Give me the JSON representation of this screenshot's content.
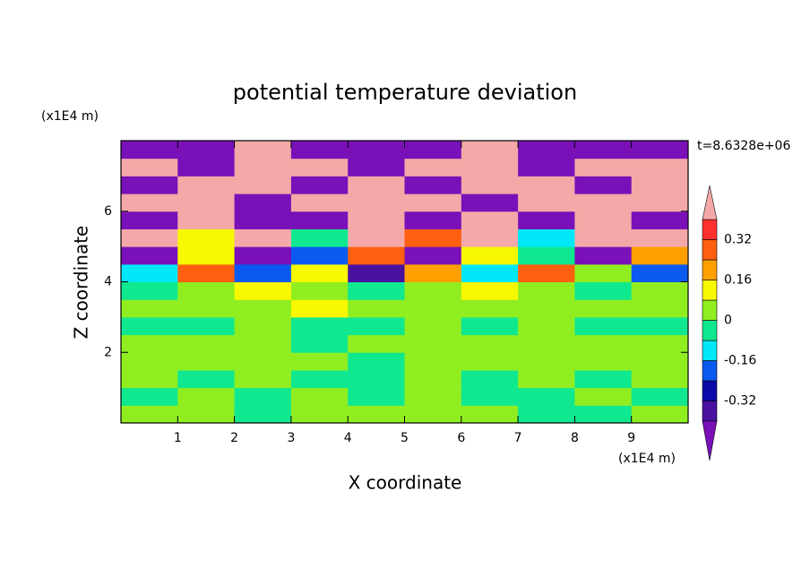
{
  "chart_data": {
    "type": "contour",
    "title": "potential temperature deviation",
    "xlabel": "X coordinate",
    "ylabel": "Z coordinate",
    "x_unit": "(x1E4 m)",
    "y_unit": "(x1E4 m)",
    "time_label": "t=8.6328e+06",
    "xlim": [
      0,
      10
    ],
    "ylim": [
      0,
      8
    ],
    "xticks": [
      1,
      2,
      3,
      4,
      5,
      6,
      7,
      8,
      9
    ],
    "yticks": [
      2,
      4,
      6
    ],
    "z": [
      [
        0.04,
        0.04,
        -0.04,
        0.04,
        0.04,
        0.04,
        0.04,
        -0.04,
        -0.04,
        0.04
      ],
      [
        -0.04,
        0.04,
        -0.04,
        0.04,
        -0.04,
        0.04,
        -0.04,
        -0.04,
        0.04,
        -0.04
      ],
      [
        0.04,
        -0.04,
        0.04,
        -0.04,
        -0.04,
        0.04,
        -0.04,
        0.04,
        -0.04,
        0.04
      ],
      [
        0.04,
        0.04,
        0.04,
        0.04,
        -0.04,
        0.04,
        0.04,
        0.04,
        0.04,
        0.04
      ],
      [
        0.04,
        0.04,
        0.04,
        -0.04,
        0.04,
        0.04,
        0.04,
        0.04,
        0.04,
        0.04
      ],
      [
        -0.04,
        -0.04,
        0.04,
        -0.04,
        -0.04,
        0.04,
        -0.04,
        0.04,
        -0.04,
        -0.04
      ],
      [
        0.04,
        0.04,
        0.04,
        0.12,
        0.04,
        0.04,
        0.04,
        0.04,
        0.04,
        0.04
      ],
      [
        -0.04,
        0.04,
        0.12,
        0.04,
        -0.04,
        0.04,
        0.12,
        0.04,
        -0.04,
        0.04
      ],
      [
        -0.12,
        0.28,
        -0.2,
        0.12,
        -0.36,
        0.2,
        -0.12,
        0.28,
        0.04,
        -0.2
      ],
      [
        -0.44,
        0.12,
        -0.44,
        -0.2,
        0.28,
        -0.44,
        0.12,
        -0.04,
        -0.44,
        0.2
      ],
      [
        0.44,
        0.12,
        0.44,
        -0.04,
        0.44,
        0.28,
        0.44,
        -0.12,
        0.44,
        0.44
      ],
      [
        -0.44,
        0.44,
        -0.44,
        -0.44,
        0.44,
        -0.44,
        0.44,
        -0.44,
        0.44,
        -0.44
      ],
      [
        0.44,
        0.44,
        -0.44,
        0.44,
        0.44,
        0.44,
        -0.44,
        0.44,
        0.44,
        0.44
      ],
      [
        -0.44,
        0.44,
        0.44,
        -0.44,
        0.44,
        -0.44,
        0.44,
        0.44,
        -0.44,
        0.44
      ],
      [
        0.44,
        -0.44,
        0.44,
        0.44,
        -0.44,
        0.44,
        0.44,
        -0.44,
        0.44,
        0.44
      ],
      [
        -0.44,
        -0.44,
        0.44,
        -0.44,
        -0.44,
        -0.44,
        0.44,
        -0.44,
        -0.44,
        -0.44
      ]
    ],
    "levels": [
      -0.4,
      -0.32,
      -0.24,
      -0.16,
      -0.08,
      0,
      0.08,
      0.16,
      0.24,
      0.32,
      0.4
    ],
    "colors": [
      "#7a10b8",
      "#4a10a0",
      "#0a0aa8",
      "#0a5af0",
      "#00e8f8",
      "#10e890",
      "#90ee20",
      "#f8f800",
      "#ffa000",
      "#ff6010",
      "#ff3030",
      "#f4a8a8"
    ],
    "cbar_ticks": [
      0.32,
      0.16,
      0,
      -0.16,
      -0.32
    ]
  }
}
